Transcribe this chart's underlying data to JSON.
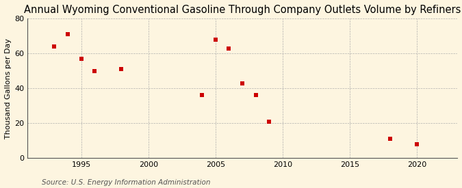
{
  "title": "Annual Wyoming Conventional Gasoline Through Company Outlets Volume by Refiners",
  "ylabel": "Thousand Gallons per Day",
  "source": "Source: U.S. Energy Information Administration",
  "fig_background_color": "#ffffff",
  "panel_background_color": "#fdf5e0",
  "years": [
    1993,
    1994,
    1995,
    1996,
    1998,
    2004,
    2005,
    2006,
    2007,
    2008,
    2009,
    2018,
    2020
  ],
  "values": [
    64,
    71,
    57,
    50,
    51,
    36,
    68,
    63,
    43,
    36,
    21,
    11,
    8
  ],
  "xlim": [
    1991,
    2023
  ],
  "ylim": [
    0,
    80
  ],
  "xticks": [
    1995,
    2000,
    2005,
    2010,
    2015,
    2020
  ],
  "yticks": [
    0,
    20,
    40,
    60,
    80
  ],
  "marker_color": "#cc0000",
  "marker": "s",
  "marker_size": 5,
  "title_fontsize": 10.5,
  "label_fontsize": 8,
  "tick_fontsize": 8,
  "source_fontsize": 7.5,
  "grid_color": "#aaaaaa",
  "grid_linestyle": "--",
  "grid_linewidth": 0.5
}
